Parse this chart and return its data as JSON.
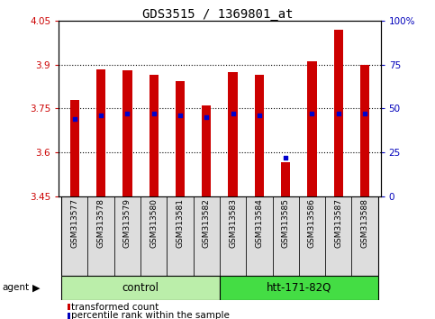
{
  "title": "GDS3515 / 1369801_at",
  "samples": [
    "GSM313577",
    "GSM313578",
    "GSM313579",
    "GSM313580",
    "GSM313581",
    "GSM313582",
    "GSM313583",
    "GSM313584",
    "GSM313585",
    "GSM313586",
    "GSM313587",
    "GSM313588"
  ],
  "transformed_counts": [
    3.78,
    3.885,
    3.88,
    3.865,
    3.845,
    3.76,
    3.875,
    3.865,
    3.565,
    3.91,
    4.02,
    3.9
  ],
  "percentile_ranks": [
    44,
    46,
    47,
    47,
    46,
    45,
    47,
    46,
    22,
    47,
    47,
    47
  ],
  "ymin": 3.45,
  "ymax": 4.05,
  "yticks": [
    3.45,
    3.6,
    3.75,
    3.9,
    4.05
  ],
  "ytick_labels": [
    "3.45",
    "3.6",
    "3.75",
    "3.9",
    "4.05"
  ],
  "right_yticks": [
    0,
    25,
    50,
    75,
    100
  ],
  "right_ytick_labels": [
    "0",
    "25",
    "50",
    "75",
    "100%"
  ],
  "bar_color": "#CC0000",
  "dot_color": "#0000CC",
  "bar_width": 0.35,
  "control_color": "#BBEEAA",
  "htt_color": "#44DD44",
  "tick_label_color": "#CC0000",
  "right_tick_color": "#0000BB",
  "gridline_color": "#000000",
  "legend_items": [
    {
      "label": "transformed count",
      "color": "#CC0000"
    },
    {
      "label": "percentile rank within the sample",
      "color": "#0000BB"
    }
  ],
  "figsize": [
    4.83,
    3.54
  ],
  "dpi": 100
}
